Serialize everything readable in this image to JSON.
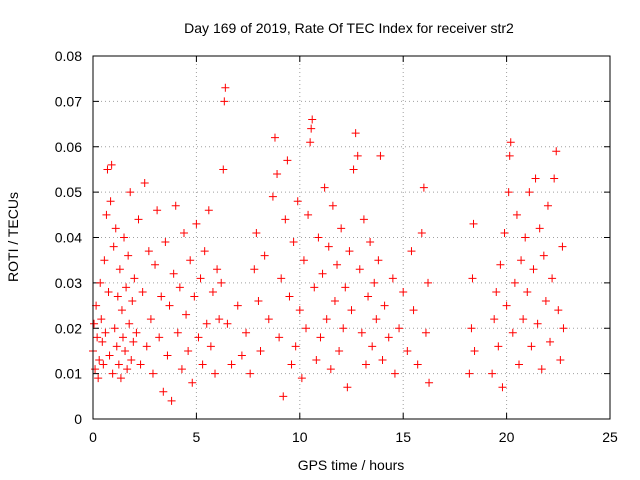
{
  "chart_data": {
    "type": "scatter",
    "title": "Day 169 of 2019, Rate Of TEC Index for receiver str2",
    "xlabel": "GPS time / hours",
    "ylabel": "ROTI / TECUs",
    "xlim": [
      0,
      25
    ],
    "ylim": [
      0,
      0.08
    ],
    "xticks": [
      0,
      5,
      10,
      15,
      20,
      25
    ],
    "yticks": [
      0,
      0.01,
      0.02,
      0.03,
      0.04,
      0.05,
      0.06,
      0.07,
      0.08
    ],
    "xtick_labels": [
      "0",
      "5",
      "10",
      "15",
      "20",
      "25"
    ],
    "ytick_labels": [
      "0",
      "0.01",
      "0.02",
      "0.03",
      "0.04",
      "0.05",
      "0.06",
      "0.07",
      "0.08"
    ],
    "grid": true,
    "marker": "+",
    "color": "#ff0000",
    "series": [
      {
        "name": "ROTI",
        "points": [
          [
            0.0,
            0.015
          ],
          [
            0.05,
            0.021
          ],
          [
            0.1,
            0.011
          ],
          [
            0.15,
            0.025
          ],
          [
            0.2,
            0.018
          ],
          [
            0.25,
            0.009
          ],
          [
            0.3,
            0.013
          ],
          [
            0.35,
            0.03
          ],
          [
            0.4,
            0.022
          ],
          [
            0.45,
            0.017
          ],
          [
            0.5,
            0.012
          ],
          [
            0.55,
            0.035
          ],
          [
            0.6,
            0.019
          ],
          [
            0.65,
            0.045
          ],
          [
            0.7,
            0.055
          ],
          [
            0.75,
            0.028
          ],
          [
            0.8,
            0.014
          ],
          [
            0.85,
            0.048
          ],
          [
            0.9,
            0.056
          ],
          [
            0.95,
            0.01
          ],
          [
            1.0,
            0.038
          ],
          [
            1.05,
            0.02
          ],
          [
            1.1,
            0.042
          ],
          [
            1.15,
            0.016
          ],
          [
            1.2,
            0.027
          ],
          [
            1.25,
            0.012
          ],
          [
            1.3,
            0.033
          ],
          [
            1.35,
            0.009
          ],
          [
            1.4,
            0.024
          ],
          [
            1.45,
            0.018
          ],
          [
            1.5,
            0.04
          ],
          [
            1.55,
            0.015
          ],
          [
            1.6,
            0.029
          ],
          [
            1.65,
            0.011
          ],
          [
            1.7,
            0.036
          ],
          [
            1.75,
            0.021
          ],
          [
            1.8,
            0.05
          ],
          [
            1.85,
            0.013
          ],
          [
            1.9,
            0.026
          ],
          [
            1.95,
            0.017
          ],
          [
            2.0,
            0.031
          ],
          [
            2.1,
            0.019
          ],
          [
            2.2,
            0.044
          ],
          [
            2.3,
            0.012
          ],
          [
            2.4,
            0.028
          ],
          [
            2.5,
            0.052
          ],
          [
            2.6,
            0.016
          ],
          [
            2.7,
            0.037
          ],
          [
            2.8,
            0.022
          ],
          [
            2.9,
            0.01
          ],
          [
            3.0,
            0.034
          ],
          [
            3.1,
            0.046
          ],
          [
            3.2,
            0.018
          ],
          [
            3.3,
            0.027
          ],
          [
            3.4,
            0.006
          ],
          [
            3.5,
            0.039
          ],
          [
            3.6,
            0.014
          ],
          [
            3.7,
            0.025
          ],
          [
            3.8,
            0.004
          ],
          [
            3.9,
            0.032
          ],
          [
            4.0,
            0.047
          ],
          [
            4.1,
            0.019
          ],
          [
            4.2,
            0.029
          ],
          [
            4.3,
            0.011
          ],
          [
            4.4,
            0.041
          ],
          [
            4.5,
            0.023
          ],
          [
            4.6,
            0.015
          ],
          [
            4.7,
            0.035
          ],
          [
            4.8,
            0.008
          ],
          [
            4.9,
            0.027
          ],
          [
            5.0,
            0.043
          ],
          [
            5.1,
            0.018
          ],
          [
            5.2,
            0.031
          ],
          [
            5.3,
            0.012
          ],
          [
            5.4,
            0.037
          ],
          [
            5.5,
            0.021
          ],
          [
            5.6,
            0.046
          ],
          [
            5.7,
            0.016
          ],
          [
            5.8,
            0.028
          ],
          [
            5.9,
            0.01
          ],
          [
            6.0,
            0.033
          ],
          [
            6.1,
            0.022
          ],
          [
            6.2,
            0.03
          ],
          [
            6.3,
            0.055
          ],
          [
            6.35,
            0.07
          ],
          [
            6.4,
            0.073
          ],
          [
            6.5,
            0.021
          ],
          [
            6.7,
            0.012
          ],
          [
            7.0,
            0.025
          ],
          [
            7.2,
            0.014
          ],
          [
            7.4,
            0.019
          ],
          [
            7.6,
            0.01
          ],
          [
            7.8,
            0.033
          ],
          [
            7.9,
            0.041
          ],
          [
            8.0,
            0.026
          ],
          [
            8.1,
            0.015
          ],
          [
            8.3,
            0.036
          ],
          [
            8.5,
            0.022
          ],
          [
            8.7,
            0.049
          ],
          [
            8.8,
            0.062
          ],
          [
            8.9,
            0.054
          ],
          [
            9.0,
            0.018
          ],
          [
            9.1,
            0.031
          ],
          [
            9.2,
            0.005
          ],
          [
            9.3,
            0.044
          ],
          [
            9.4,
            0.057
          ],
          [
            9.5,
            0.027
          ],
          [
            9.6,
            0.012
          ],
          [
            9.7,
            0.039
          ],
          [
            9.8,
            0.016
          ],
          [
            9.9,
            0.048
          ],
          [
            10.0,
            0.024
          ],
          [
            10.1,
            0.009
          ],
          [
            10.2,
            0.035
          ],
          [
            10.3,
            0.02
          ],
          [
            10.4,
            0.045
          ],
          [
            10.5,
            0.061
          ],
          [
            10.55,
            0.064
          ],
          [
            10.6,
            0.066
          ],
          [
            10.7,
            0.029
          ],
          [
            10.8,
            0.013
          ],
          [
            10.9,
            0.04
          ],
          [
            11.0,
            0.018
          ],
          [
            11.1,
            0.032
          ],
          [
            11.2,
            0.051
          ],
          [
            11.3,
            0.022
          ],
          [
            11.4,
            0.038
          ],
          [
            11.5,
            0.011
          ],
          [
            11.6,
            0.047
          ],
          [
            11.7,
            0.026
          ],
          [
            11.8,
            0.034
          ],
          [
            11.9,
            0.015
          ],
          [
            12.0,
            0.042
          ],
          [
            12.1,
            0.02
          ],
          [
            12.2,
            0.029
          ],
          [
            12.3,
            0.007
          ],
          [
            12.4,
            0.037
          ],
          [
            12.5,
            0.024
          ],
          [
            12.6,
            0.055
          ],
          [
            12.7,
            0.063
          ],
          [
            12.8,
            0.058
          ],
          [
            12.9,
            0.033
          ],
          [
            13.0,
            0.019
          ],
          [
            13.1,
            0.044
          ],
          [
            13.2,
            0.012
          ],
          [
            13.3,
            0.027
          ],
          [
            13.4,
            0.039
          ],
          [
            13.5,
            0.016
          ],
          [
            13.6,
            0.03
          ],
          [
            13.7,
            0.022
          ],
          [
            13.8,
            0.035
          ],
          [
            13.9,
            0.058
          ],
          [
            14.0,
            0.013
          ],
          [
            14.1,
            0.025
          ],
          [
            14.3,
            0.018
          ],
          [
            14.5,
            0.031
          ],
          [
            14.6,
            0.01
          ],
          [
            14.8,
            0.02
          ],
          [
            15.0,
            0.028
          ],
          [
            15.2,
            0.015
          ],
          [
            15.4,
            0.037
          ],
          [
            15.5,
            0.024
          ],
          [
            15.7,
            0.012
          ],
          [
            15.9,
            0.041
          ],
          [
            16.0,
            0.051
          ],
          [
            16.1,
            0.019
          ],
          [
            16.2,
            0.03
          ],
          [
            16.25,
            0.008
          ],
          [
            18.2,
            0.01
          ],
          [
            18.3,
            0.02
          ],
          [
            18.35,
            0.031
          ],
          [
            18.4,
            0.043
          ],
          [
            18.45,
            0.015
          ],
          [
            19.3,
            0.01
          ],
          [
            19.4,
            0.022
          ],
          [
            19.5,
            0.028
          ],
          [
            19.6,
            0.016
          ],
          [
            19.7,
            0.034
          ],
          [
            19.8,
            0.007
          ],
          [
            19.9,
            0.041
          ],
          [
            20.0,
            0.025
          ],
          [
            20.1,
            0.05
          ],
          [
            20.15,
            0.058
          ],
          [
            20.2,
            0.061
          ],
          [
            20.3,
            0.019
          ],
          [
            20.4,
            0.03
          ],
          [
            20.5,
            0.045
          ],
          [
            20.6,
            0.012
          ],
          [
            20.7,
            0.035
          ],
          [
            20.8,
            0.022
          ],
          [
            20.9,
            0.04
          ],
          [
            21.0,
            0.028
          ],
          [
            21.1,
            0.05
          ],
          [
            21.2,
            0.016
          ],
          [
            21.3,
            0.033
          ],
          [
            21.4,
            0.053
          ],
          [
            21.5,
            0.021
          ],
          [
            21.6,
            0.042
          ],
          [
            21.7,
            0.011
          ],
          [
            21.8,
            0.036
          ],
          [
            21.9,
            0.026
          ],
          [
            22.0,
            0.047
          ],
          [
            22.1,
            0.017
          ],
          [
            22.2,
            0.031
          ],
          [
            22.3,
            0.053
          ],
          [
            22.4,
            0.059
          ],
          [
            22.5,
            0.024
          ],
          [
            22.6,
            0.013
          ],
          [
            22.7,
            0.038
          ],
          [
            22.75,
            0.02
          ]
        ]
      }
    ]
  }
}
